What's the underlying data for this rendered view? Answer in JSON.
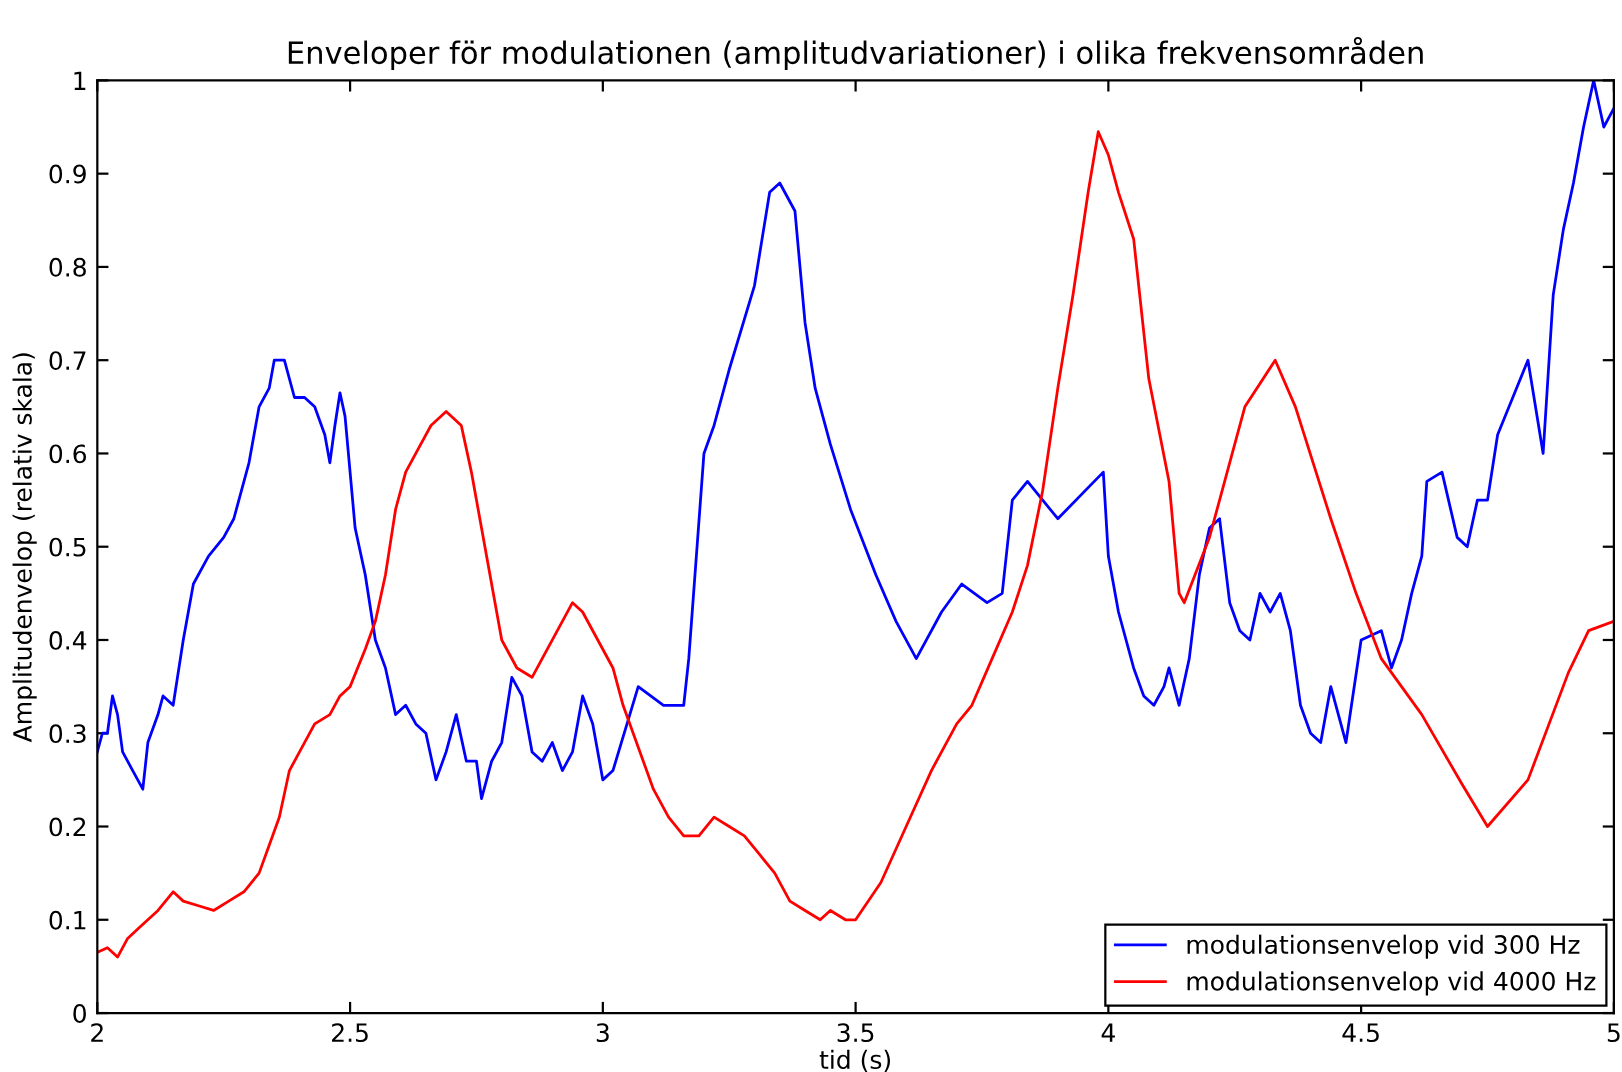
{
  "chart_data": {
    "type": "line",
    "title": "Enveloper för modulationen (amplitudvariationer) i olika frekvensområden",
    "xlabel": "tid (s)",
    "ylabel": "Amplitudenvelop (relativ skala)",
    "xlim": [
      2,
      5
    ],
    "ylim": [
      0,
      1
    ],
    "xticks": [
      2,
      2.5,
      3,
      3.5,
      4,
      4.5,
      5
    ],
    "yticks": [
      0,
      0.1,
      0.2,
      0.3,
      0.4,
      0.5,
      0.6,
      0.7,
      0.8,
      0.9,
      1
    ],
    "grid": false,
    "legend": "bottom right",
    "marker": "none",
    "line_style": "solid",
    "series": [
      {
        "name": "modulationsenvelop vid 300 Hz",
        "color": "#0000ff",
        "x": [
          2.0,
          2.01,
          2.02,
          2.03,
          2.04,
          2.05,
          2.07,
          2.09,
          2.1,
          2.12,
          2.13,
          2.15,
          2.17,
          2.19,
          2.22,
          2.25,
          2.27,
          2.3,
          2.32,
          2.34,
          2.35,
          2.37,
          2.39,
          2.41,
          2.43,
          2.45,
          2.46,
          2.47,
          2.48,
          2.49,
          2.51,
          2.53,
          2.55,
          2.57,
          2.59,
          2.61,
          2.63,
          2.65,
          2.67,
          2.69,
          2.71,
          2.73,
          2.75,
          2.76,
          2.78,
          2.8,
          2.82,
          2.84,
          2.86,
          2.88,
          2.9,
          2.92,
          2.94,
          2.96,
          2.98,
          3.0,
          3.02,
          3.07,
          3.12,
          3.16,
          3.17,
          3.2,
          3.22,
          3.25,
          3.3,
          3.33,
          3.35,
          3.38,
          3.4,
          3.42,
          3.45,
          3.49,
          3.54,
          3.58,
          3.62,
          3.67,
          3.71,
          3.76,
          3.79,
          3.81,
          3.84,
          3.9,
          3.99,
          4.0,
          4.02,
          4.05,
          4.07,
          4.09,
          4.11,
          4.12,
          4.14,
          4.16,
          4.18,
          4.2,
          4.22,
          4.24,
          4.26,
          4.28,
          4.3,
          4.32,
          4.34,
          4.36,
          4.38,
          4.4,
          4.42,
          4.44,
          4.47,
          4.5,
          4.54,
          4.56,
          4.58,
          4.6,
          4.62,
          4.63,
          4.66,
          4.69,
          4.71,
          4.73,
          4.75,
          4.77,
          4.8,
          4.83,
          4.86,
          4.88,
          4.9,
          4.92,
          4.94,
          4.96,
          4.98,
          5.0
        ],
        "values": [
          0.28,
          0.3,
          0.3,
          0.34,
          0.32,
          0.28,
          0.26,
          0.24,
          0.29,
          0.32,
          0.34,
          0.33,
          0.4,
          0.46,
          0.49,
          0.51,
          0.53,
          0.59,
          0.65,
          0.67,
          0.7,
          0.7,
          0.66,
          0.66,
          0.65,
          0.62,
          0.59,
          0.63,
          0.665,
          0.64,
          0.52,
          0.47,
          0.4,
          0.37,
          0.32,
          0.33,
          0.31,
          0.3,
          0.25,
          0.28,
          0.32,
          0.27,
          0.27,
          0.23,
          0.27,
          0.29,
          0.36,
          0.34,
          0.28,
          0.27,
          0.29,
          0.26,
          0.28,
          0.34,
          0.31,
          0.25,
          0.26,
          0.35,
          0.33,
          0.33,
          0.38,
          0.6,
          0.63,
          0.69,
          0.78,
          0.88,
          0.89,
          0.86,
          0.74,
          0.67,
          0.61,
          0.54,
          0.47,
          0.42,
          0.38,
          0.43,
          0.46,
          0.44,
          0.45,
          0.55,
          0.57,
          0.53,
          0.58,
          0.49,
          0.43,
          0.37,
          0.34,
          0.33,
          0.35,
          0.37,
          0.33,
          0.38,
          0.47,
          0.52,
          0.53,
          0.44,
          0.41,
          0.4,
          0.45,
          0.43,
          0.45,
          0.41,
          0.33,
          0.3,
          0.29,
          0.35,
          0.29,
          0.4,
          0.41,
          0.37,
          0.4,
          0.45,
          0.49,
          0.57,
          0.58,
          0.51,
          0.5,
          0.55,
          0.55,
          0.62,
          0.66,
          0.7,
          0.6,
          0.77,
          0.84,
          0.89,
          0.95,
          1.0,
          0.95,
          0.97
        ]
      },
      {
        "name": "modulationsenvelop vid 4000 Hz",
        "color": "#ff0000",
        "x": [
          2.0,
          2.02,
          2.04,
          2.06,
          2.08,
          2.1,
          2.12,
          2.15,
          2.17,
          2.2,
          2.23,
          2.26,
          2.29,
          2.32,
          2.34,
          2.36,
          2.38,
          2.4,
          2.43,
          2.46,
          2.48,
          2.5,
          2.53,
          2.55,
          2.57,
          2.59,
          2.61,
          2.63,
          2.66,
          2.69,
          2.72,
          2.74,
          2.76,
          2.78,
          2.8,
          2.83,
          2.86,
          2.88,
          2.91,
          2.94,
          2.96,
          2.99,
          3.02,
          3.04,
          3.06,
          3.08,
          3.1,
          3.13,
          3.16,
          3.19,
          3.22,
          3.25,
          3.28,
          3.31,
          3.34,
          3.37,
          3.4,
          3.43,
          3.45,
          3.48,
          3.5,
          3.55,
          3.6,
          3.65,
          3.7,
          3.73,
          3.77,
          3.81,
          3.84,
          3.87,
          3.9,
          3.93,
          3.96,
          3.98,
          4.0,
          4.02,
          4.05,
          4.08,
          4.12,
          4.14,
          4.15,
          4.2,
          4.27,
          4.33,
          4.37,
          4.44,
          4.49,
          4.54,
          4.62,
          4.7,
          4.75,
          4.83,
          4.91,
          4.95,
          5.0
        ],
        "values": [
          0.065,
          0.07,
          0.06,
          0.08,
          0.09,
          0.1,
          0.11,
          0.13,
          0.12,
          0.115,
          0.11,
          0.12,
          0.13,
          0.15,
          0.18,
          0.21,
          0.26,
          0.28,
          0.31,
          0.32,
          0.34,
          0.35,
          0.39,
          0.42,
          0.47,
          0.54,
          0.58,
          0.6,
          0.63,
          0.645,
          0.63,
          0.58,
          0.52,
          0.46,
          0.4,
          0.37,
          0.36,
          0.38,
          0.41,
          0.44,
          0.43,
          0.4,
          0.37,
          0.33,
          0.3,
          0.27,
          0.24,
          0.21,
          0.19,
          0.19,
          0.21,
          0.2,
          0.19,
          0.17,
          0.15,
          0.12,
          0.11,
          0.1,
          0.11,
          0.1,
          0.1,
          0.14,
          0.2,
          0.26,
          0.31,
          0.33,
          0.38,
          0.43,
          0.48,
          0.56,
          0.67,
          0.77,
          0.88,
          0.945,
          0.92,
          0.88,
          0.83,
          0.68,
          0.57,
          0.45,
          0.44,
          0.51,
          0.65,
          0.7,
          0.65,
          0.53,
          0.45,
          0.38,
          0.32,
          0.245,
          0.2,
          0.25,
          0.365,
          0.41,
          0.42
        ]
      }
    ]
  }
}
